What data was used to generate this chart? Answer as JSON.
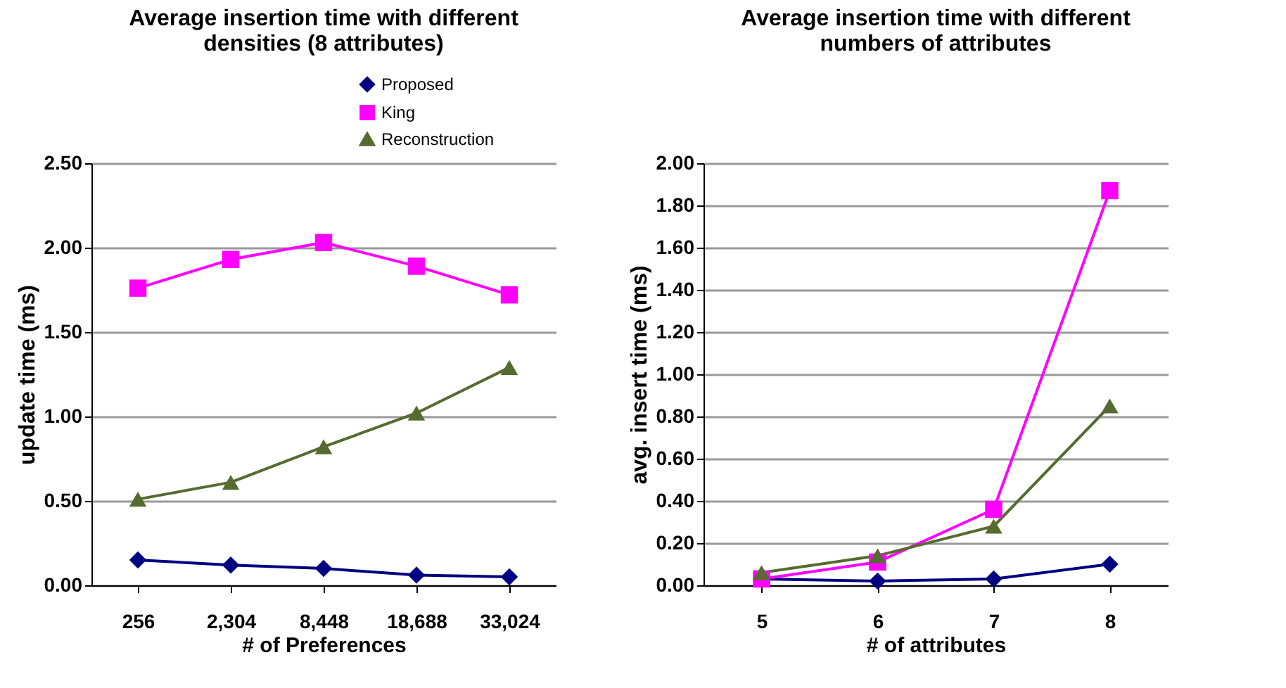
{
  "chart_data": [
    {
      "type": "line",
      "title": "Average insertion time with different densities (8 attributes)",
      "xlabel": "# of Preferences",
      "ylabel": "update time (ms)",
      "categories": [
        "256",
        "2,304",
        "8,448",
        "18,688",
        "33,024"
      ],
      "ylim": [
        0,
        2.5
      ],
      "yticks": [
        {
          "value": 0,
          "label": "0.00"
        },
        {
          "value": 0.5,
          "label": "0.50"
        },
        {
          "value": 1,
          "label": "1.00"
        },
        {
          "value": 1.5,
          "label": "1.50"
        },
        {
          "value": 2,
          "label": "2.00"
        },
        {
          "value": 2.5,
          "label": "2.50"
        }
      ],
      "grid": "y",
      "legend": "top right",
      "series": [
        {
          "name": "Proposed",
          "color": "#000080",
          "marker": "diamond",
          "values": [
            0.15,
            0.12,
            0.1,
            0.06,
            0.05
          ]
        },
        {
          "name": "King",
          "color": "#ff00ff",
          "marker": "square",
          "values": [
            1.76,
            1.93,
            2.03,
            1.89,
            1.72
          ]
        },
        {
          "name": "Reconstruction",
          "color": "#556b2f",
          "marker": "triangle",
          "values": [
            0.51,
            0.61,
            0.82,
            1.02,
            1.29
          ]
        }
      ]
    },
    {
      "type": "line",
      "title": "Average insertion time with different numbers of attributes",
      "xlabel": "# of attributes",
      "ylabel": "avg. insert time (ms)",
      "categories": [
        "5",
        "6",
        "7",
        "8"
      ],
      "ylim": [
        0,
        2
      ],
      "yticks": [
        {
          "value": 0,
          "label": "0.00"
        },
        {
          "value": 0.2,
          "label": "0.20"
        },
        {
          "value": 0.4,
          "label": "0.40"
        },
        {
          "value": 0.6,
          "label": "0.60"
        },
        {
          "value": 0.8,
          "label": "0.80"
        },
        {
          "value": 1,
          "label": "1.00"
        },
        {
          "value": 1.2,
          "label": "1.20"
        },
        {
          "value": 1.4,
          "label": "1.40"
        },
        {
          "value": 1.6,
          "label": "1.60"
        },
        {
          "value": 1.8,
          "label": "1.80"
        },
        {
          "value": 2,
          "label": "2.00"
        }
      ],
      "grid": "y",
      "legend": "top right",
      "series": [
        {
          "name": "Proposed",
          "color": "#000080",
          "marker": "diamond",
          "values": [
            0.03,
            0.02,
            0.03,
            0.1
          ]
        },
        {
          "name": "King",
          "color": "#ff00ff",
          "marker": "square",
          "values": [
            0.03,
            0.11,
            0.36,
            1.87
          ]
        },
        {
          "name": "Reconstruction",
          "color": "#556b2f",
          "marker": "triangle",
          "values": [
            0.06,
            0.14,
            0.28,
            0.85
          ]
        }
      ]
    }
  ]
}
